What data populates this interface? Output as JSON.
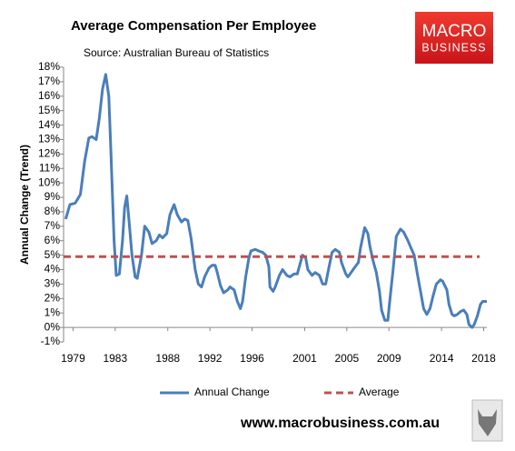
{
  "chart_data": {
    "type": "line",
    "title": "Average Compensation Per Employee",
    "subtitle": "Source: Australian Bureau of Statistics",
    "y_label": "Annual Change (Trend)",
    "logo": [
      "MACRO",
      "BUSINESS"
    ],
    "footer": "www.macrobusiness.com.au",
    "legend": "bottom",
    "grid": false,
    "xlim": [
      1978.1,
      2018.3
    ],
    "xticks": [
      1979,
      1983,
      1988,
      1992,
      1996,
      2001,
      2005,
      2009,
      2014,
      2018
    ],
    "ylim": [
      -1,
      18
    ],
    "yticks": [
      {
        "value": -1,
        "label": "-1%"
      },
      {
        "value": 0,
        "label": "0%"
      },
      {
        "value": 1,
        "label": "1%"
      },
      {
        "value": 2,
        "label": "2%"
      },
      {
        "value": 3,
        "label": "3%"
      },
      {
        "value": 4,
        "label": "4%"
      },
      {
        "value": 5,
        "label": "5%"
      },
      {
        "value": 6,
        "label": "6%"
      },
      {
        "value": 7,
        "label": "7%"
      },
      {
        "value": 8,
        "label": "8%"
      },
      {
        "value": 9,
        "label": "9%"
      },
      {
        "value": 10,
        "label": "10%"
      },
      {
        "value": 11,
        "label": "11%"
      },
      {
        "value": 12,
        "label": "12%"
      },
      {
        "value": 13,
        "label": "13%"
      },
      {
        "value": 14,
        "label": "14%"
      },
      {
        "value": 15,
        "label": "15%"
      },
      {
        "value": 16,
        "label": "16%"
      },
      {
        "value": 17,
        "label": "17%"
      },
      {
        "value": 18,
        "label": "18%"
      }
    ],
    "x": [
      1978.3,
      1978.7,
      1979.2,
      1979.7,
      1980.1,
      1980.5,
      1980.8,
      1981.2,
      1981.5,
      1981.8,
      1982.1,
      1982.4,
      1982.6,
      1982.9,
      1983.1,
      1983.4,
      1983.7,
      1983.9,
      1984.1,
      1984.3,
      1984.6,
      1984.9,
      1985.1,
      1985.5,
      1985.8,
      1986.2,
      1986.5,
      1986.9,
      1987.2,
      1987.5,
      1987.9,
      1988.2,
      1988.6,
      1988.9,
      1989.3,
      1989.6,
      1989.9,
      1990.2,
      1990.6,
      1990.9,
      1991.2,
      1991.5,
      1991.9,
      1992.2,
      1992.5,
      1992.7,
      1993.0,
      1993.3,
      1993.7,
      1993.9,
      1994.3,
      1994.6,
      1994.9,
      1995.1,
      1995.4,
      1995.7,
      1995.9,
      1996.3,
      1996.6,
      1997.0,
      1997.3,
      1997.6,
      1997.7,
      1998.0,
      1998.2,
      1998.6,
      1998.9,
      1999.3,
      1999.6,
      2000.0,
      2000.3,
      2000.6,
      2000.8,
      2001.1,
      2001.3,
      2001.7,
      2002.0,
      2002.4,
      2002.7,
      2003.0,
      2003.2,
      2003.6,
      2003.9,
      2004.3,
      2004.5,
      2004.9,
      2005.1,
      2005.4,
      2005.7,
      2006.1,
      2006.3,
      2006.7,
      2007.0,
      2007.2,
      2007.5,
      2007.8,
      2008.1,
      2008.3,
      2008.6,
      2008.9,
      2009.1,
      2009.4,
      2009.7,
      2010.1,
      2010.4,
      2010.8,
      2011.1,
      2011.4,
      2011.7,
      2012.0,
      2012.3,
      2012.6,
      2012.9,
      2013.2,
      2013.5,
      2013.9,
      2014.1,
      2014.5,
      2014.7,
      2015.0,
      2015.2,
      2015.5,
      2015.8,
      2016.1,
      2016.4,
      2016.6,
      2016.9,
      2017.1,
      2017.4,
      2017.7,
      2017.9,
      2018.3
    ],
    "series": [
      {
        "name": "Annual Change",
        "color": "#4a7ebb",
        "values": [
          7.5,
          8.5,
          8.6,
          9.2,
          11.5,
          13.1,
          13.2,
          13.0,
          14.5,
          16.5,
          17.5,
          16.0,
          12,
          6,
          3.6,
          3.7,
          6,
          8.3,
          9.1,
          7.5,
          5,
          3.5,
          3.4,
          5,
          7.0,
          6.6,
          5.8,
          6.0,
          6.4,
          6.2,
          6.5,
          7.8,
          8.5,
          7.8,
          7.3,
          7.5,
          7.4,
          6.2,
          4.0,
          3.0,
          2.8,
          3.5,
          4.1,
          4.3,
          4.3,
          3.8,
          2.9,
          2.4,
          2.6,
          2.8,
          2.6,
          1.8,
          1.3,
          1.8,
          3.5,
          4.8,
          5.3,
          5.4,
          5.3,
          5.2,
          5.0,
          4.2,
          2.8,
          2.5,
          2.8,
          3.6,
          4.0,
          3.6,
          3.5,
          3.7,
          3.7,
          4.5,
          5.0,
          4.8,
          4.0,
          3.6,
          3.8,
          3.6,
          3.0,
          3.0,
          3.8,
          5.2,
          5.4,
          5.2,
          4.5,
          3.7,
          3.5,
          3.8,
          4.1,
          4.5,
          5.5,
          6.9,
          6.5,
          5.6,
          4.6,
          3.8,
          2.5,
          1.2,
          0.5,
          0.5,
          2.0,
          4.0,
          6.3,
          6.8,
          6.6,
          6.0,
          5.5,
          5.0,
          3.7,
          2.5,
          1.3,
          0.9,
          1.3,
          2.2,
          3.0,
          3.3,
          3.2,
          2.6,
          1.6,
          0.9,
          0.8,
          0.9,
          1.1,
          1.2,
          0.9,
          0.2,
          0.0,
          0.2,
          0.8,
          1.6,
          1.8,
          1.8
        ]
      }
    ],
    "average": {
      "name": "Average",
      "color": "#c0504d",
      "value": 4.9
    }
  }
}
